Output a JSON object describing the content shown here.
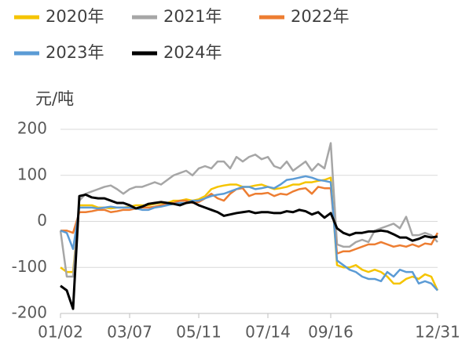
{
  "chart_data": {
    "type": "line",
    "y_label": "元/吨",
    "categories": [
      "01/02",
      null,
      null,
      null,
      null,
      null,
      null,
      null,
      null,
      null,
      null,
      "03/07",
      null,
      null,
      null,
      null,
      null,
      null,
      null,
      null,
      null,
      null,
      "05/11",
      null,
      null,
      null,
      null,
      null,
      null,
      null,
      null,
      null,
      null,
      "07/14",
      null,
      null,
      null,
      null,
      null,
      null,
      null,
      null,
      null,
      "09/16",
      null,
      null,
      null,
      null,
      null,
      null,
      null,
      null,
      null,
      null,
      null,
      null,
      null,
      null,
      null,
      null,
      "12/31"
    ],
    "series": [
      {
        "name": "2020年",
        "color": "#f5c400",
        "values": [
          -100,
          -110,
          -110,
          35,
          35,
          35,
          30,
          30,
          28,
          30,
          30,
          32,
          35,
          35,
          35,
          38,
          40,
          40,
          45,
          45,
          48,
          45,
          48,
          55,
          70,
          75,
          78,
          80,
          80,
          75,
          75,
          78,
          80,
          75,
          70,
          72,
          75,
          80,
          80,
          85,
          85,
          88,
          90,
          95,
          -95,
          -100,
          -100,
          -95,
          -105,
          -110,
          -105,
          -110,
          -120,
          -135,
          -135,
          -125,
          -120,
          -125,
          -115,
          -120,
          -150
        ]
      },
      {
        "name": "2021年",
        "color": "#a6a6a6",
        "values": [
          -20,
          -120,
          -120,
          45,
          60,
          65,
          70,
          75,
          78,
          70,
          60,
          70,
          75,
          75,
          80,
          85,
          80,
          90,
          100,
          105,
          110,
          100,
          115,
          120,
          115,
          130,
          130,
          115,
          140,
          130,
          140,
          145,
          135,
          140,
          120,
          115,
          130,
          110,
          120,
          130,
          110,
          125,
          115,
          170,
          -50,
          -55,
          -55,
          -45,
          -40,
          -45,
          -20,
          -15,
          -10,
          -5,
          -15,
          10,
          -30,
          -30,
          -25,
          -30,
          -45
        ]
      },
      {
        "name": "2022年",
        "color": "#ed7d31",
        "values": [
          -20,
          -20,
          -25,
          20,
          20,
          22,
          25,
          25,
          20,
          22,
          25,
          25,
          28,
          30,
          30,
          32,
          35,
          38,
          40,
          45,
          45,
          40,
          42,
          50,
          60,
          50,
          45,
          60,
          70,
          72,
          55,
          60,
          60,
          62,
          55,
          60,
          58,
          65,
          70,
          72,
          60,
          75,
          72,
          72,
          -70,
          -65,
          -65,
          -60,
          -55,
          -50,
          -50,
          -45,
          -50,
          -55,
          -52,
          -55,
          -50,
          -55,
          -48,
          -50,
          -25
        ]
      },
      {
        "name": "2023年",
        "color": "#5b9bd5",
        "values": [
          -20,
          -25,
          -60,
          30,
          30,
          30,
          28,
          30,
          32,
          30,
          30,
          30,
          28,
          25,
          25,
          30,
          32,
          35,
          38,
          40,
          40,
          45,
          45,
          50,
          55,
          58,
          60,
          65,
          70,
          75,
          75,
          70,
          72,
          75,
          72,
          80,
          90,
          92,
          95,
          98,
          95,
          90,
          88,
          85,
          -85,
          -95,
          -105,
          -110,
          -120,
          -125,
          -125,
          -130,
          -110,
          -120,
          -105,
          -110,
          -110,
          -135,
          -130,
          -135,
          -150
        ]
      },
      {
        "name": "2024年",
        "color": "#000000",
        "values": [
          -140,
          -150,
          -190,
          55,
          58,
          52,
          50,
          50,
          45,
          40,
          40,
          35,
          28,
          32,
          38,
          40,
          42,
          40,
          38,
          35,
          40,
          42,
          35,
          30,
          25,
          20,
          12,
          15,
          18,
          20,
          22,
          18,
          20,
          20,
          18,
          18,
          22,
          20,
          25,
          22,
          15,
          20,
          8,
          18,
          -15,
          -25,
          -30,
          -25,
          -25,
          -22,
          -22,
          -20,
          -22,
          -28,
          -35,
          -35,
          -42,
          -38,
          -32,
          -35,
          -33
        ]
      }
    ],
    "ylim": [
      -200,
      200
    ],
    "yticks": [
      -200,
      -100,
      0,
      100,
      200
    ],
    "grid": true
  }
}
